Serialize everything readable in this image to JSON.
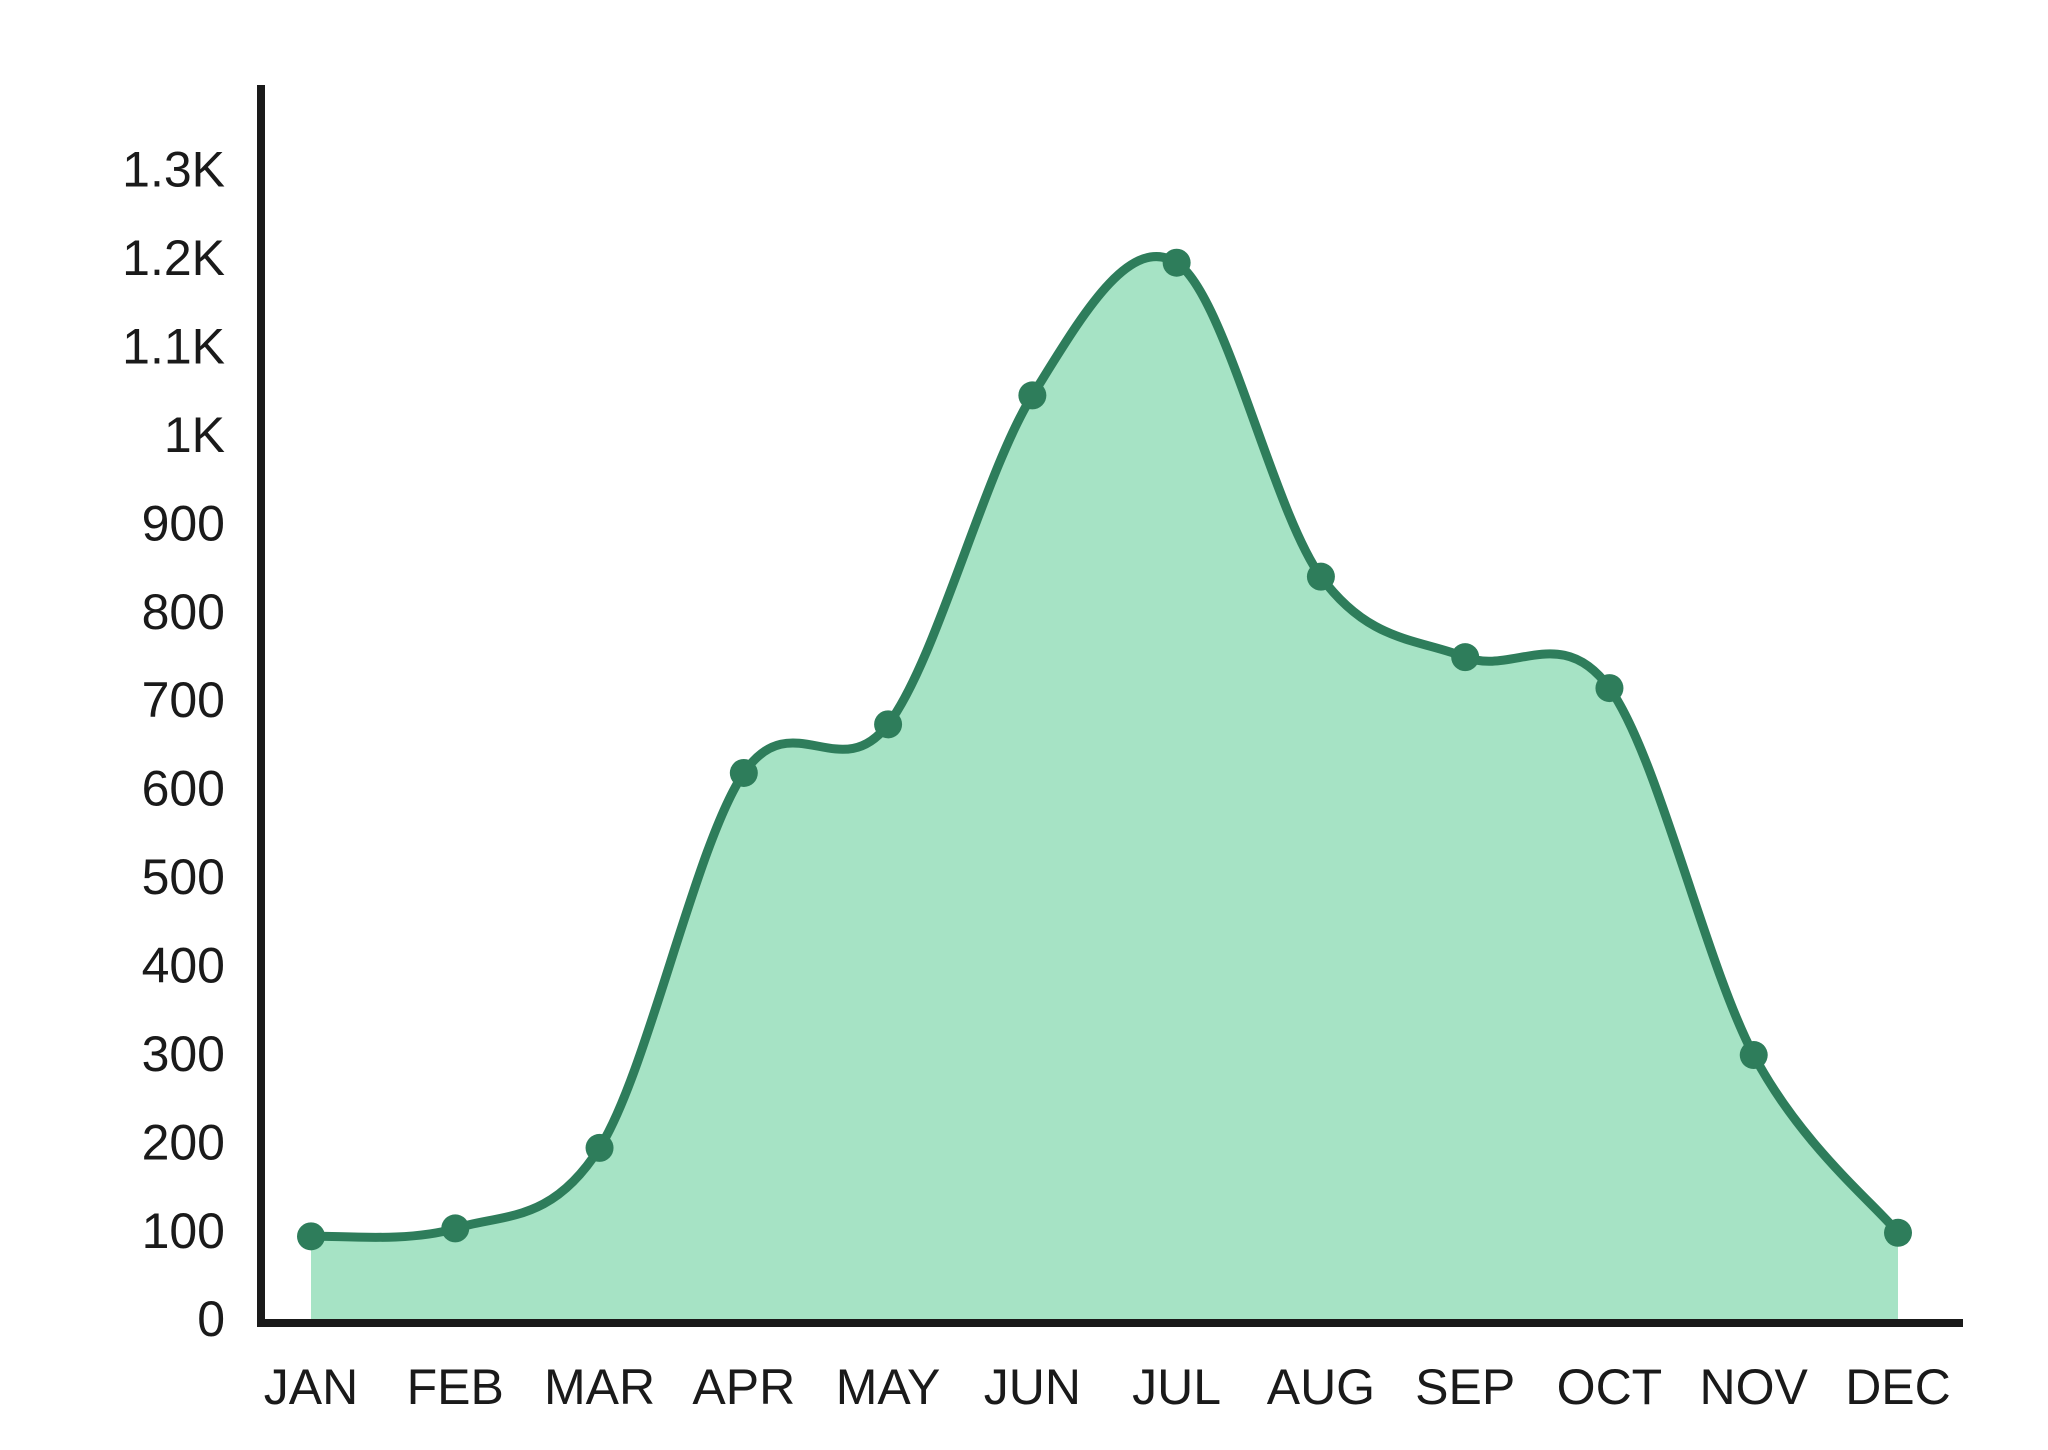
{
  "chart_data": {
    "type": "area",
    "categories": [
      "JAN",
      "FEB",
      "MAR",
      "APR",
      "MAY",
      "JUN",
      "JUL",
      "AUG",
      "SEP",
      "OCT",
      "NOV",
      "DEC"
    ],
    "values": [
      98,
      107,
      198,
      622,
      677,
      1049,
      1199,
      844,
      753,
      718,
      303,
      102
    ],
    "color": "#2e7d5b",
    "fill_color": "#a6e3c5",
    "ylim": [
      0,
      1400
    ],
    "yticks": [
      0,
      100,
      200,
      300,
      400,
      500,
      600,
      700,
      800,
      900,
      {
        "value": 1000,
        "label": "1K"
      },
      {
        "value": 1100,
        "label": "1.1K"
      },
      {
        "value": 1200,
        "label": "1.2K"
      },
      {
        "value": 1300,
        "label": "1.3K"
      }
    ],
    "grid": false
  }
}
